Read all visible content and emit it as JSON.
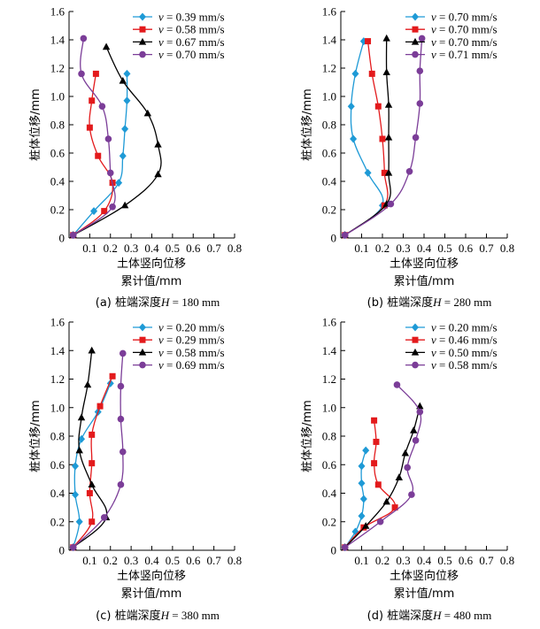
{
  "panels": [
    {
      "caption_prefix": "(a) 桩端深度",
      "caption_var": "H",
      "caption_value": " = 180 mm",
      "chart_data": {
        "type": "line",
        "xlabel": [
          "土体竖向位移",
          "累计值/mm"
        ],
        "ylabel": "桩体位移/mm",
        "xlim": [
          0,
          0.8
        ],
        "ylim": [
          0,
          1.6
        ],
        "xticks": [
          "0.1",
          "0.2",
          "0.3",
          "0.4",
          "0.5",
          "0.6",
          "0.7",
          "0.8"
        ],
        "yticks": [
          "0",
          "0.2",
          "0.4",
          "0.6",
          "0.8",
          "1.0",
          "1.2",
          "1.4",
          "1.6"
        ],
        "legend_position": "top-right",
        "series": [
          {
            "var": "v",
            "name": " = 0.39 mm/s",
            "marker": "diamond",
            "color": "#1e9ad6",
            "points": [
              [
                0.02,
                0.02
              ],
              [
                0.12,
                0.19
              ],
              [
                0.24,
                0.39
              ],
              [
                0.26,
                0.58
              ],
              [
                0.27,
                0.77
              ],
              [
                0.28,
                0.97
              ],
              [
                0.28,
                1.16
              ]
            ]
          },
          {
            "var": "v",
            "name": " = 0.58 mm/s",
            "marker": "square",
            "color": "#e31a1c",
            "points": [
              [
                0.02,
                0.02
              ],
              [
                0.17,
                0.19
              ],
              [
                0.21,
                0.39
              ],
              [
                0.14,
                0.58
              ],
              [
                0.1,
                0.78
              ],
              [
                0.11,
                0.97
              ],
              [
                0.13,
                1.16
              ]
            ]
          },
          {
            "var": "v",
            "name": " = 0.67 mm/s",
            "marker": "triangle",
            "color": "#000000",
            "points": [
              [
                0.02,
                0.02
              ],
              [
                0.27,
                0.23
              ],
              [
                0.43,
                0.45
              ],
              [
                0.43,
                0.66
              ],
              [
                0.38,
                0.88
              ],
              [
                0.26,
                1.11
              ],
              [
                0.18,
                1.35
              ]
            ]
          },
          {
            "var": "v",
            "name": " = 0.70 mm/s",
            "marker": "circle",
            "color": "#7b3d98",
            "points": [
              [
                0.02,
                0.02
              ],
              [
                0.21,
                0.22
              ],
              [
                0.2,
                0.46
              ],
              [
                0.19,
                0.7
              ],
              [
                0.16,
                0.93
              ],
              [
                0.06,
                1.16
              ],
              [
                0.07,
                1.41
              ]
            ]
          }
        ]
      }
    },
    {
      "caption_prefix": "(b) 桩端深度",
      "caption_var": "H",
      "caption_value": " = 280 mm",
      "chart_data": {
        "type": "line",
        "xlabel": [
          "土体竖向位移",
          "累计值/mm"
        ],
        "ylabel": "桩体位移/mm",
        "xlim": [
          0,
          0.8
        ],
        "ylim": [
          0,
          1.6
        ],
        "xticks": [
          "0.1",
          "0.2",
          "0.3",
          "0.4",
          "0.5",
          "0.6",
          "0.7",
          "0.8"
        ],
        "yticks": [
          "0",
          "0.2",
          "0.4",
          "0.6",
          "0.8",
          "1.0",
          "1.2",
          "1.4",
          "1.6"
        ],
        "legend_position": "top-right",
        "series": [
          {
            "var": "v",
            "name": " = 0.70 mm/s",
            "marker": "diamond",
            "color": "#1e9ad6",
            "points": [
              [
                0.02,
                0.02
              ],
              [
                0.2,
                0.23
              ],
              [
                0.13,
                0.46
              ],
              [
                0.06,
                0.7
              ],
              [
                0.05,
                0.93
              ],
              [
                0.07,
                1.16
              ],
              [
                0.11,
                1.39
              ]
            ]
          },
          {
            "var": "v",
            "name": " = 0.70 mm/s",
            "marker": "square",
            "color": "#e31a1c",
            "points": [
              [
                0.02,
                0.02
              ],
              [
                0.21,
                0.23
              ],
              [
                0.21,
                0.46
              ],
              [
                0.2,
                0.7
              ],
              [
                0.18,
                0.93
              ],
              [
                0.15,
                1.16
              ],
              [
                0.13,
                1.39
              ]
            ]
          },
          {
            "var": "v",
            "name": " = 0.70 mm/s",
            "marker": "triangle",
            "color": "#000000",
            "points": [
              [
                0.02,
                0.02
              ],
              [
                0.22,
                0.24
              ],
              [
                0.23,
                0.46
              ],
              [
                0.23,
                0.71
              ],
              [
                0.23,
                0.94
              ],
              [
                0.22,
                1.17
              ],
              [
                0.22,
                1.41
              ]
            ]
          },
          {
            "var": "v",
            "name": " = 0.71 mm/s",
            "marker": "circle",
            "color": "#7b3d98",
            "points": [
              [
                0.02,
                0.02
              ],
              [
                0.24,
                0.24
              ],
              [
                0.33,
                0.47
              ],
              [
                0.36,
                0.71
              ],
              [
                0.38,
                0.95
              ],
              [
                0.38,
                1.18
              ],
              [
                0.39,
                1.41
              ]
            ]
          }
        ]
      }
    },
    {
      "caption_prefix": "(c) 桩端深度",
      "caption_var": "H",
      "caption_value": " = 380 mm",
      "chart_data": {
        "type": "line",
        "xlabel": [
          "土体竖向位移",
          "累计值/mm"
        ],
        "ylabel": "桩体位移/mm",
        "xlim": [
          0,
          0.8
        ],
        "ylim": [
          0,
          1.6
        ],
        "xticks": [
          "0.1",
          "0.2",
          "0.3",
          "0.4",
          "0.5",
          "0.6",
          "0.7",
          "0.8"
        ],
        "yticks": [
          "0",
          "0.2",
          "0.4",
          "0.6",
          "0.8",
          "1.0",
          "1.2",
          "1.4",
          "1.6"
        ],
        "legend_position": "top-right",
        "series": [
          {
            "var": "v",
            "name": " = 0.20 mm/s",
            "marker": "diamond",
            "color": "#1e9ad6",
            "points": [
              [
                0.02,
                0.02
              ],
              [
                0.05,
                0.2
              ],
              [
                0.03,
                0.39
              ],
              [
                0.03,
                0.59
              ],
              [
                0.06,
                0.78
              ],
              [
                0.14,
                0.97
              ],
              [
                0.2,
                1.17
              ]
            ]
          },
          {
            "var": "v",
            "name": " = 0.29 mm/s",
            "marker": "square",
            "color": "#e31a1c",
            "points": [
              [
                0.02,
                0.02
              ],
              [
                0.11,
                0.2
              ],
              [
                0.1,
                0.4
              ],
              [
                0.11,
                0.61
              ],
              [
                0.11,
                0.81
              ],
              [
                0.15,
                1.01
              ],
              [
                0.21,
                1.22
              ]
            ]
          },
          {
            "var": "v",
            "name": " = 0.58 mm/s",
            "marker": "triangle",
            "color": "#000000",
            "points": [
              [
                0.02,
                0.02
              ],
              [
                0.18,
                0.23
              ],
              [
                0.11,
                0.46
              ],
              [
                0.05,
                0.7
              ],
              [
                0.06,
                0.93
              ],
              [
                0.09,
                1.16
              ],
              [
                0.11,
                1.4
              ]
            ]
          },
          {
            "var": "v",
            "name": " = 0.69 mm/s",
            "marker": "circle",
            "color": "#7b3d98",
            "points": [
              [
                0.02,
                0.02
              ],
              [
                0.17,
                0.23
              ],
              [
                0.25,
                0.46
              ],
              [
                0.26,
                0.69
              ],
              [
                0.25,
                0.92
              ],
              [
                0.25,
                1.15
              ],
              [
                0.26,
                1.38
              ]
            ]
          }
        ]
      }
    },
    {
      "caption_prefix": "(d) 桩端深度",
      "caption_var": "H",
      "caption_value": " = 480 mm",
      "chart_data": {
        "type": "line",
        "xlabel": [
          "土体竖向位移",
          "累计值/mm"
        ],
        "ylabel": "桩体位移/mm",
        "xlim": [
          0,
          0.8
        ],
        "ylim": [
          0,
          1.6
        ],
        "xticks": [
          "0.1",
          "0.2",
          "0.3",
          "0.4",
          "0.5",
          "0.6",
          "0.7",
          "0.8"
        ],
        "yticks": [
          "0",
          "0.2",
          "0.4",
          "0.6",
          "0.8",
          "1.0",
          "1.2",
          "1.4",
          "1.6"
        ],
        "legend_position": "top-right",
        "series": [
          {
            "var": "v",
            "name": " = 0.20 mm/s",
            "marker": "diamond",
            "color": "#1e9ad6",
            "points": [
              [
                0.02,
                0.02
              ],
              [
                0.07,
                0.13
              ],
              [
                0.1,
                0.24
              ],
              [
                0.11,
                0.36
              ],
              [
                0.1,
                0.47
              ],
              [
                0.1,
                0.59
              ],
              [
                0.12,
                0.7
              ]
            ]
          },
          {
            "var": "v",
            "name": " = 0.46 mm/s",
            "marker": "square",
            "color": "#e31a1c",
            "points": [
              [
                0.02,
                0.02
              ],
              [
                0.11,
                0.16
              ],
              [
                0.26,
                0.3
              ],
              [
                0.18,
                0.46
              ],
              [
                0.16,
                0.61
              ],
              [
                0.17,
                0.76
              ],
              [
                0.16,
                0.91
              ]
            ]
          },
          {
            "var": "v",
            "name": " = 0.50 mm/s",
            "marker": "triangle",
            "color": "#000000",
            "points": [
              [
                0.02,
                0.02
              ],
              [
                0.12,
                0.17
              ],
              [
                0.22,
                0.34
              ],
              [
                0.28,
                0.51
              ],
              [
                0.31,
                0.68
              ],
              [
                0.35,
                0.84
              ],
              [
                0.38,
                1.01
              ]
            ]
          },
          {
            "var": "v",
            "name": " = 0.58 mm/s",
            "marker": "circle",
            "color": "#7b3d98",
            "points": [
              [
                0.02,
                0.02
              ],
              [
                0.19,
                0.2
              ],
              [
                0.34,
                0.39
              ],
              [
                0.32,
                0.58
              ],
              [
                0.36,
                0.77
              ],
              [
                0.38,
                0.97
              ],
              [
                0.27,
                1.16
              ]
            ]
          }
        ]
      }
    }
  ]
}
